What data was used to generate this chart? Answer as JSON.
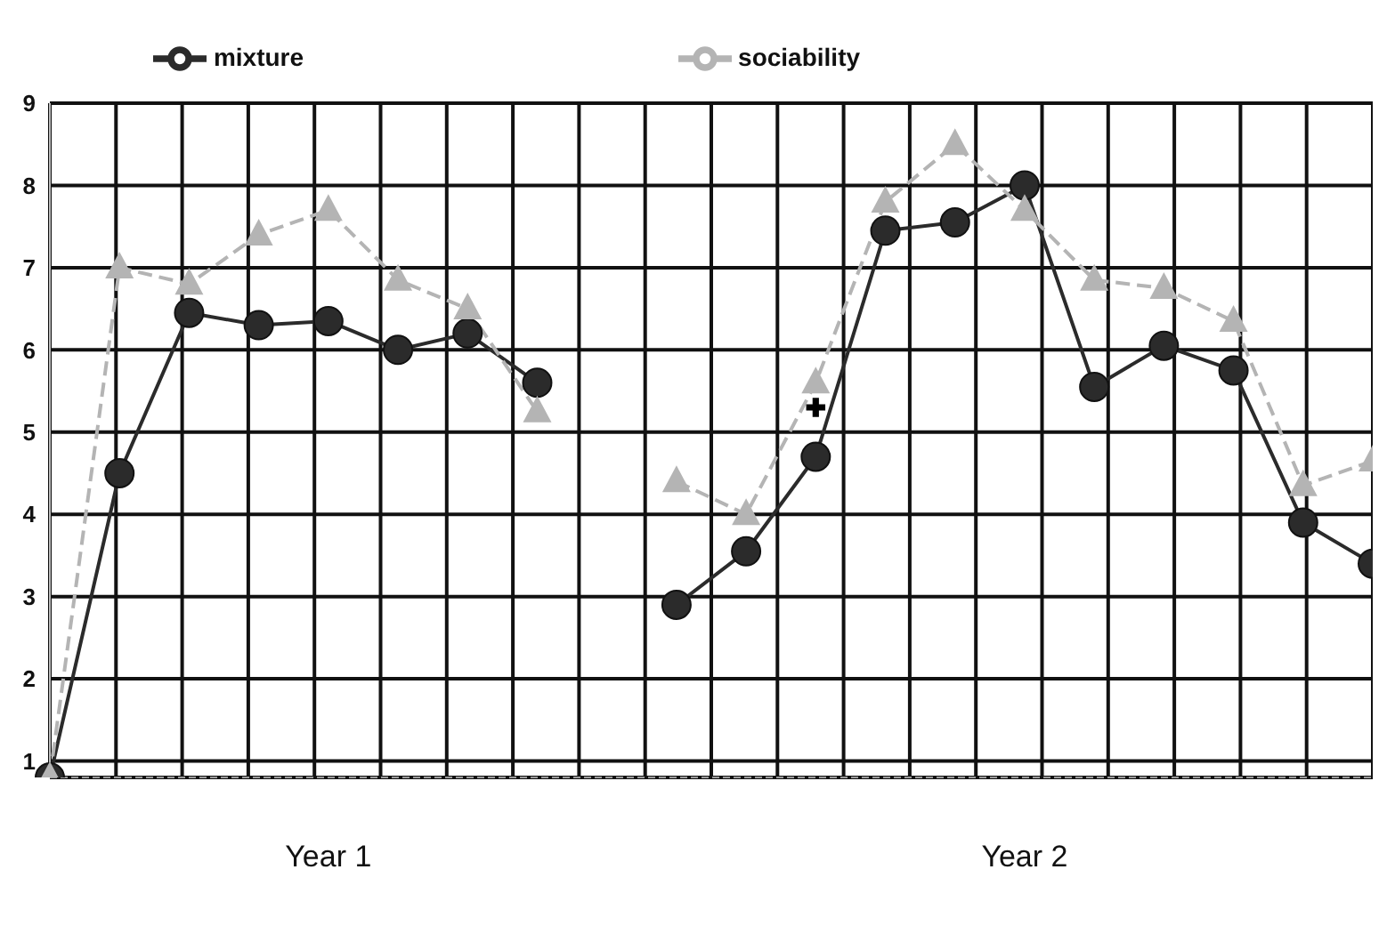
{
  "chart_data": {
    "type": "line",
    "categories": [
      null,
      null,
      null,
      null,
      "Year 1",
      null,
      null,
      null,
      null,
      null,
      null,
      null,
      null,
      null,
      "Year 2",
      null,
      null,
      null,
      null,
      null
    ],
    "series": [
      {
        "name": "mixture",
        "color": "#2b2b2b",
        "marker": "circle",
        "line_style": "solid",
        "values": [
          0.8,
          4.5,
          6.45,
          6.3,
          6.35,
          6.0,
          6.2,
          5.6,
          null,
          2.9,
          3.55,
          4.7,
          7.45,
          7.55,
          8.0,
          5.55,
          6.05,
          5.75,
          3.9,
          3.4
        ]
      },
      {
        "name": "sociability",
        "color": "#b4b4b4",
        "marker": "triangle",
        "line_style": "dashed",
        "values": [
          0.8,
          7.0,
          6.8,
          7.4,
          7.7,
          6.85,
          6.5,
          5.25,
          null,
          4.4,
          4.0,
          5.6,
          7.8,
          8.5,
          7.7,
          6.85,
          6.75,
          6.35,
          4.35,
          4.65
        ]
      },
      {
        "type": "scatter",
        "color": "#000000",
        "marker": "cross",
        "values": [
          null,
          null,
          null,
          null,
          null,
          null,
          null,
          null,
          null,
          null,
          null,
          5.3,
          null,
          null,
          null,
          null,
          null,
          null,
          null,
          null
        ]
      }
    ],
    "ylim": [
      0.8,
      9
    ],
    "yticks": [
      1,
      2,
      3,
      4,
      5,
      6,
      7,
      8,
      9
    ],
    "grid": true,
    "legend": "top"
  }
}
